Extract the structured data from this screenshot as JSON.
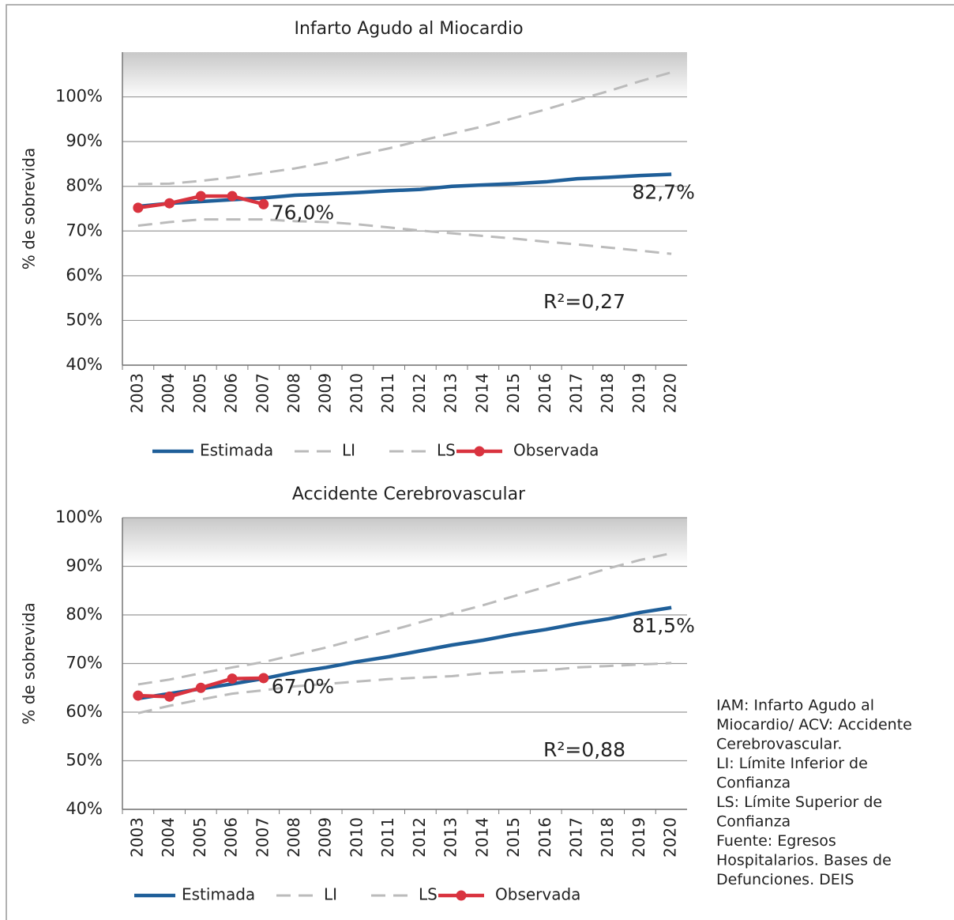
{
  "charts": [
    {
      "type": "line",
      "title": "Infarto Agudo al Miocardio",
      "ylabel": "% de sobrevida",
      "categories": [
        "2003",
        "2004",
        "2005",
        "2006",
        "2007",
        "2008",
        "2009",
        "2010",
        "2011",
        "2012",
        "2013",
        "2014",
        "2015",
        "2016",
        "2017",
        "2018",
        "2019",
        "2020"
      ],
      "ylim": [
        40,
        110
      ],
      "yticks": [
        {
          "value": 40,
          "label": "40%"
        },
        {
          "value": 50,
          "label": "50%"
        },
        {
          "value": 60,
          "label": "60%"
        },
        {
          "value": 70,
          "label": "70%"
        },
        {
          "value": 80,
          "label": "80%"
        },
        {
          "value": 90,
          "label": "90%"
        },
        {
          "value": 100,
          "label": "100%"
        }
      ],
      "grid": true,
      "series": [
        {
          "name": "Estimada",
          "color": "#1f5f99",
          "values": [
            75.5,
            76.2,
            76.6,
            77.0,
            77.4,
            78.0,
            78.3,
            78.6,
            79.0,
            79.3,
            80.0,
            80.3,
            80.6,
            81.0,
            81.7,
            82.0,
            82.4,
            82.7
          ],
          "value_labels": [
            null,
            null,
            null,
            null,
            null,
            null,
            null,
            null,
            null,
            null,
            null,
            null,
            null,
            null,
            null,
            null,
            null,
            "82,7%"
          ]
        },
        {
          "name": "LI",
          "color": "#bbbbbb",
          "dashed": true,
          "values": [
            71.2,
            72.0,
            72.6,
            72.6,
            72.6,
            72.2,
            72.0,
            71.5,
            70.8,
            70.1,
            69.5,
            68.9,
            68.3,
            67.6,
            67.0,
            66.3,
            65.6,
            64.9
          ]
        },
        {
          "name": "LS",
          "color": "#bbbbbb",
          "dashed": true,
          "values": [
            80.5,
            80.6,
            81.2,
            82.0,
            83.0,
            84.0,
            85.3,
            87.0,
            88.5,
            90.2,
            91.8,
            93.4,
            95.3,
            97.2,
            99.3,
            101.3,
            103.5,
            105.5
          ]
        },
        {
          "name": "Observada",
          "color": "#d9333f",
          "markers": true,
          "values": [
            75.2,
            76.2,
            77.8,
            77.8,
            76.0,
            null,
            null,
            null,
            null,
            null,
            null,
            null,
            null,
            null,
            null,
            null,
            null,
            null
          ],
          "value_labels": [
            null,
            null,
            null,
            null,
            "76,0%",
            null,
            null,
            null,
            null,
            null,
            null,
            null,
            null,
            null,
            null,
            null,
            null,
            null
          ]
        }
      ],
      "annotation": "R²=0,27"
    },
    {
      "type": "line",
      "title": "Accidente Cerebrovascular",
      "ylabel": "% de sobrevida",
      "categories": [
        "2003",
        "2004",
        "2005",
        "2006",
        "2007",
        "2008",
        "2009",
        "2010",
        "2011",
        "2012",
        "2013",
        "2014",
        "2015",
        "2016",
        "2017",
        "2018",
        "2019",
        "2020"
      ],
      "ylim": [
        40,
        100
      ],
      "yticks": [
        {
          "value": 40,
          "label": "40%"
        },
        {
          "value": 50,
          "label": "50%"
        },
        {
          "value": 60,
          "label": "60%"
        },
        {
          "value": 70,
          "label": "70%"
        },
        {
          "value": 80,
          "label": "80%"
        },
        {
          "value": 90,
          "label": "90%"
        },
        {
          "value": 100,
          "label": "100%"
        }
      ],
      "grid": true,
      "series": [
        {
          "name": "Estimada",
          "color": "#1f5f99",
          "values": [
            62.8,
            63.8,
            64.8,
            65.8,
            66.9,
            68.2,
            69.2,
            70.4,
            71.4,
            72.6,
            73.8,
            74.8,
            76.0,
            77.0,
            78.2,
            79.2,
            80.5,
            81.5
          ],
          "value_labels": [
            null,
            null,
            null,
            null,
            null,
            null,
            null,
            null,
            null,
            null,
            null,
            null,
            null,
            null,
            null,
            null,
            null,
            "81,5%"
          ]
        },
        {
          "name": "LI",
          "color": "#bbbbbb",
          "dashed": true,
          "values": [
            59.8,
            61.3,
            62.6,
            63.8,
            64.5,
            65.3,
            65.8,
            66.3,
            66.8,
            67.1,
            67.4,
            68.0,
            68.3,
            68.6,
            69.2,
            69.5,
            69.8,
            70.1
          ]
        },
        {
          "name": "LS",
          "color": "#bbbbbb",
          "dashed": true,
          "values": [
            65.7,
            66.7,
            68.0,
            69.2,
            70.3,
            71.8,
            73.3,
            75.0,
            76.7,
            78.5,
            80.3,
            82.0,
            83.9,
            85.8,
            87.7,
            89.6,
            91.3,
            92.7
          ]
        },
        {
          "name": "Observada",
          "color": "#d9333f",
          "markers": true,
          "values": [
            63.4,
            63.2,
            65.0,
            66.9,
            67.0,
            null,
            null,
            null,
            null,
            null,
            null,
            null,
            null,
            null,
            null,
            null,
            null,
            null
          ],
          "value_labels": [
            null,
            null,
            null,
            null,
            "67,0%",
            null,
            null,
            null,
            null,
            null,
            null,
            null,
            null,
            null,
            null,
            null,
            null,
            null
          ]
        }
      ],
      "annotation": "R²=0,88"
    }
  ],
  "notes": [
    "IAM: Infarto Agudo al",
    "Miocardio/ ACV: Accidente",
    "Cerebrovascular.",
    "LI: Límite Inferior de",
    "Confianza",
    "LS: Límite Superior de",
    "Confianza",
    "Fuente: Egresos",
    "Hospitalarios. Bases de",
    "Defunciones. DEIS"
  ]
}
